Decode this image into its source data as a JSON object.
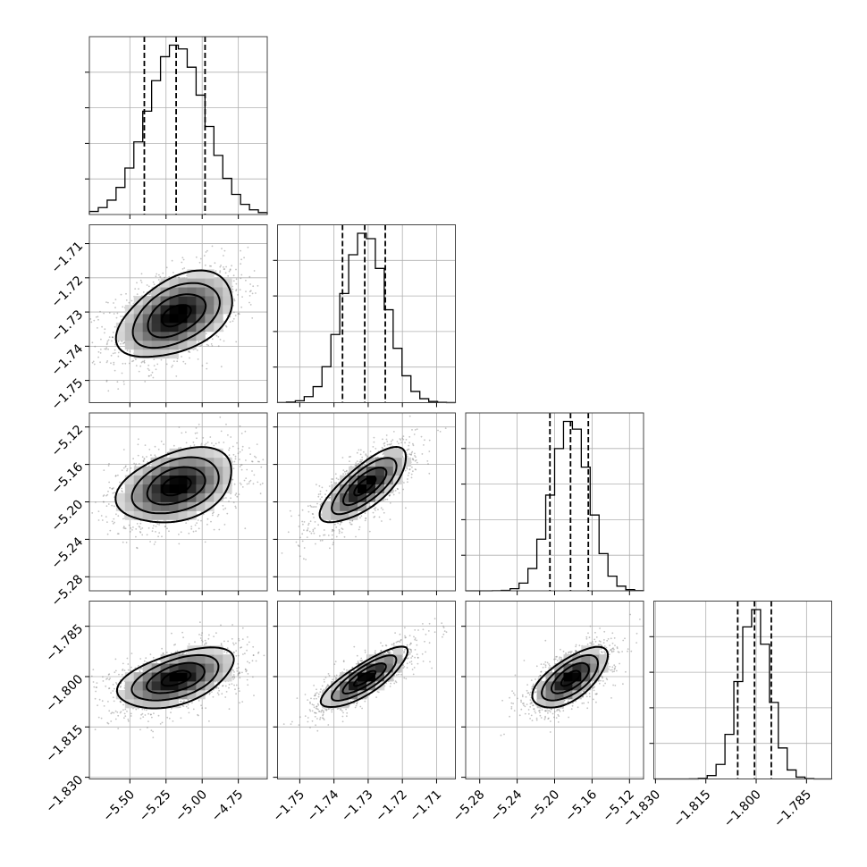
{
  "chart_data": {
    "type": "corner",
    "title": "",
    "parameters": [
      {
        "id": "p0",
        "mean": -5.18,
        "sd": 0.2,
        "quantiles": [
          -5.4,
          -5.18,
          -4.98
        ],
        "range": [
          -5.78,
          -4.55
        ],
        "ticks": [
          -5.5,
          -5.25,
          -5.0,
          -4.75
        ],
        "tick_labels": [
          "−5.50",
          "−5.25",
          "−5.00",
          "−4.75"
        ]
      },
      {
        "id": "p1",
        "mean": -1.731,
        "sd": 0.0063,
        "quantiles": [
          -1.7375,
          -1.731,
          -1.725
        ],
        "range": [
          -1.7565,
          -1.7045
        ],
        "ticks": [
          -1.75,
          -1.74,
          -1.73,
          -1.72,
          -1.71
        ],
        "tick_labels": [
          "−1.75",
          "−1.74",
          "−1.73",
          "−1.72",
          "−1.71"
        ]
      },
      {
        "id": "p2",
        "mean": -5.183,
        "sd": 0.02,
        "quantiles": [
          -5.205,
          -5.183,
          -5.164
        ],
        "range": [
          -5.295,
          -5.105
        ],
        "ticks": [
          -5.28,
          -5.24,
          -5.2,
          -5.16,
          -5.12
        ],
        "tick_labels": [
          "−5.28",
          "−5.24",
          "−5.20",
          "−5.16",
          "−5.12"
        ]
      },
      {
        "id": "p3",
        "mean": -1.8005,
        "sd": 0.0045,
        "quantiles": [
          -1.8055,
          -1.8005,
          -1.7955
        ],
        "range": [
          -1.8305,
          -1.7775
        ],
        "ticks": [
          -1.83,
          -1.815,
          -1.8,
          -1.785
        ],
        "tick_labels": [
          "−1.830",
          "−1.815",
          "−1.800",
          "−1.785"
        ]
      }
    ],
    "correlations": {
      "1-0": 0.45,
      "2-0": 0.35,
      "2-1": 0.75,
      "3-0": 0.5,
      "3-1": 0.82,
      "3-2": 0.65
    },
    "hist_bins": 20,
    "contour_levels": [
      0.5,
      1.0,
      1.5,
      2.0
    ],
    "grid": true,
    "colors": {
      "ink": "#000000",
      "scatter": "#7a7a7a",
      "grid": "#b0b0b0"
    }
  }
}
